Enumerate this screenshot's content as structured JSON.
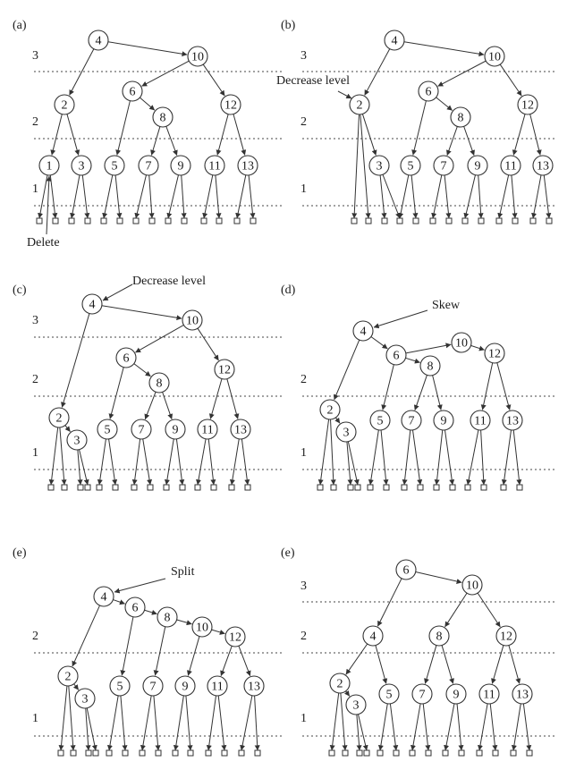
{
  "panels": [
    {
      "id": "a",
      "label": "(a)",
      "level_labels": [
        "3",
        "2",
        "1"
      ],
      "nodes": [
        {
          "id": "n4",
          "label": "4"
        },
        {
          "id": "n10",
          "label": "10"
        },
        {
          "id": "n2",
          "label": "2"
        },
        {
          "id": "n6",
          "label": "6"
        },
        {
          "id": "n12",
          "label": "12"
        },
        {
          "id": "n8",
          "label": "8"
        },
        {
          "id": "n1",
          "label": "1"
        },
        {
          "id": "n3",
          "label": "3"
        },
        {
          "id": "n5",
          "label": "5"
        },
        {
          "id": "n7",
          "label": "7"
        },
        {
          "id": "n9",
          "label": "9"
        },
        {
          "id": "n11",
          "label": "11"
        },
        {
          "id": "n13",
          "label": "13"
        }
      ],
      "edges": [
        [
          "n4",
          "n10"
        ],
        [
          "n4",
          "n2"
        ],
        [
          "n10",
          "n6"
        ],
        [
          "n10",
          "n12"
        ],
        [
          "n2",
          "n1"
        ],
        [
          "n2",
          "n3"
        ],
        [
          "n6",
          "n5"
        ],
        [
          "n6",
          "n8"
        ],
        [
          "n8",
          "n7"
        ],
        [
          "n8",
          "n9"
        ],
        [
          "n12",
          "n11"
        ],
        [
          "n12",
          "n13"
        ]
      ],
      "annotations": [
        {
          "text": "Delete",
          "target": "n1"
        }
      ]
    },
    {
      "id": "b",
      "label": "(b)",
      "level_labels": [
        "3",
        "2",
        "1"
      ],
      "nodes": [
        {
          "id": "n4",
          "label": "4"
        },
        {
          "id": "n10",
          "label": "10"
        },
        {
          "id": "n2",
          "label": "2"
        },
        {
          "id": "n6",
          "label": "6"
        },
        {
          "id": "n12",
          "label": "12"
        },
        {
          "id": "n8",
          "label": "8"
        },
        {
          "id": "n3",
          "label": "3"
        },
        {
          "id": "n5",
          "label": "5"
        },
        {
          "id": "n7",
          "label": "7"
        },
        {
          "id": "n9",
          "label": "9"
        },
        {
          "id": "n11",
          "label": "11"
        },
        {
          "id": "n13",
          "label": "13"
        }
      ],
      "edges": [
        [
          "n4",
          "n10"
        ],
        [
          "n4",
          "n2"
        ],
        [
          "n10",
          "n6"
        ],
        [
          "n10",
          "n12"
        ],
        [
          "n2",
          "n3"
        ],
        [
          "n6",
          "n5"
        ],
        [
          "n6",
          "n8"
        ],
        [
          "n8",
          "n7"
        ],
        [
          "n8",
          "n9"
        ],
        [
          "n12",
          "n11"
        ],
        [
          "n12",
          "n13"
        ]
      ],
      "annotations": [
        {
          "text": "Decrease level",
          "target": "n2"
        }
      ]
    },
    {
      "id": "c",
      "label": "(c)",
      "level_labels": [
        "3",
        "2",
        "1"
      ],
      "nodes": [
        {
          "id": "n4",
          "label": "4"
        },
        {
          "id": "n10",
          "label": "10"
        },
        {
          "id": "n6",
          "label": "6"
        },
        {
          "id": "n12",
          "label": "12"
        },
        {
          "id": "n8",
          "label": "8"
        },
        {
          "id": "n2",
          "label": "2"
        },
        {
          "id": "n3",
          "label": "3"
        },
        {
          "id": "n5",
          "label": "5"
        },
        {
          "id": "n7",
          "label": "7"
        },
        {
          "id": "n9",
          "label": "9"
        },
        {
          "id": "n11",
          "label": "11"
        },
        {
          "id": "n13",
          "label": "13"
        }
      ],
      "edges": [
        [
          "n4",
          "n10"
        ],
        [
          "n4",
          "n2"
        ],
        [
          "n10",
          "n6"
        ],
        [
          "n10",
          "n12"
        ],
        [
          "n2",
          "n3"
        ],
        [
          "n6",
          "n5"
        ],
        [
          "n6",
          "n8"
        ],
        [
          "n8",
          "n7"
        ],
        [
          "n8",
          "n9"
        ],
        [
          "n12",
          "n11"
        ],
        [
          "n12",
          "n13"
        ]
      ],
      "annotations": [
        {
          "text": "Decrease level",
          "target": "n4"
        }
      ]
    },
    {
      "id": "d",
      "label": "(d)",
      "level_labels": [
        "2",
        "1"
      ],
      "nodes": [
        {
          "id": "n4",
          "label": "4"
        },
        {
          "id": "n10",
          "label": "10"
        },
        {
          "id": "n12",
          "label": "12"
        },
        {
          "id": "n6",
          "label": "6"
        },
        {
          "id": "n8",
          "label": "8"
        },
        {
          "id": "n2",
          "label": "2"
        },
        {
          "id": "n3",
          "label": "3"
        },
        {
          "id": "n5",
          "label": "5"
        },
        {
          "id": "n7",
          "label": "7"
        },
        {
          "id": "n9",
          "label": "9"
        },
        {
          "id": "n11",
          "label": "11"
        },
        {
          "id": "n13",
          "label": "13"
        }
      ],
      "edges": [
        [
          "n4",
          "n6"
        ],
        [
          "n6",
          "n10"
        ],
        [
          "n10",
          "n12"
        ],
        [
          "n4",
          "n2"
        ],
        [
          "n2",
          "n3"
        ],
        [
          "n6",
          "n5"
        ],
        [
          "n6",
          "n8"
        ],
        [
          "n8",
          "n7"
        ],
        [
          "n8",
          "n9"
        ],
        [
          "n12",
          "n11"
        ],
        [
          "n12",
          "n13"
        ]
      ],
      "annotations": [
        {
          "text": "Skew",
          "target": "n4"
        }
      ]
    },
    {
      "id": "e1",
      "label": "(e)",
      "level_labels": [
        "2",
        "1"
      ],
      "nodes": [
        {
          "id": "n4",
          "label": "4"
        },
        {
          "id": "n6",
          "label": "6"
        },
        {
          "id": "n8",
          "label": "8"
        },
        {
          "id": "n10",
          "label": "10"
        },
        {
          "id": "n12",
          "label": "12"
        },
        {
          "id": "n2",
          "label": "2"
        },
        {
          "id": "n3",
          "label": "3"
        },
        {
          "id": "n5",
          "label": "5"
        },
        {
          "id": "n7",
          "label": "7"
        },
        {
          "id": "n9",
          "label": "9"
        },
        {
          "id": "n11",
          "label": "11"
        },
        {
          "id": "n13",
          "label": "13"
        }
      ],
      "edges": [
        [
          "n4",
          "n6"
        ],
        [
          "n6",
          "n8"
        ],
        [
          "n8",
          "n10"
        ],
        [
          "n10",
          "n12"
        ],
        [
          "n4",
          "n2"
        ],
        [
          "n2",
          "n3"
        ],
        [
          "n6",
          "n5"
        ],
        [
          "n8",
          "n7"
        ],
        [
          "n10",
          "n9"
        ],
        [
          "n12",
          "n11"
        ],
        [
          "n12",
          "n13"
        ]
      ],
      "annotations": [
        {
          "text": "Split",
          "target": "n4"
        }
      ]
    },
    {
      "id": "e2",
      "label": "(e)",
      "level_labels": [
        "3",
        "2",
        "1"
      ],
      "nodes": [
        {
          "id": "n6",
          "label": "6"
        },
        {
          "id": "n10",
          "label": "10"
        },
        {
          "id": "n4",
          "label": "4"
        },
        {
          "id": "n8",
          "label": "8"
        },
        {
          "id": "n12",
          "label": "12"
        },
        {
          "id": "n2",
          "label": "2"
        },
        {
          "id": "n3",
          "label": "3"
        },
        {
          "id": "n5",
          "label": "5"
        },
        {
          "id": "n7",
          "label": "7"
        },
        {
          "id": "n9",
          "label": "9"
        },
        {
          "id": "n11",
          "label": "11"
        },
        {
          "id": "n13",
          "label": "13"
        }
      ],
      "edges": [
        [
          "n6",
          "n10"
        ],
        [
          "n6",
          "n4"
        ],
        [
          "n10",
          "n8"
        ],
        [
          "n10",
          "n12"
        ],
        [
          "n4",
          "n2"
        ],
        [
          "n4",
          "n5"
        ],
        [
          "n2",
          "n3"
        ],
        [
          "n8",
          "n7"
        ],
        [
          "n8",
          "n9"
        ],
        [
          "n12",
          "n11"
        ],
        [
          "n12",
          "n13"
        ]
      ],
      "annotations": []
    }
  ]
}
